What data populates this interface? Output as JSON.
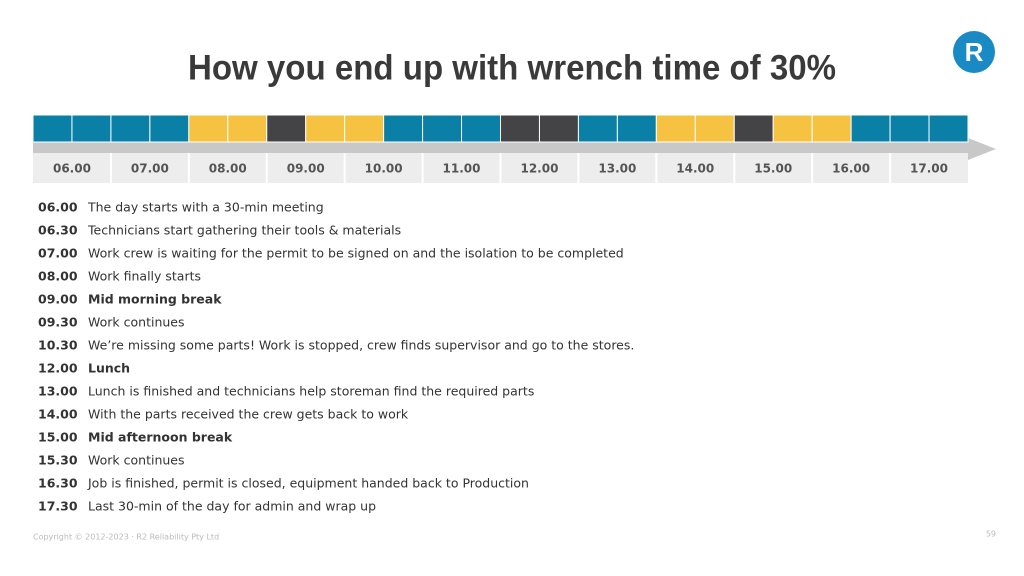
{
  "title": "How you end up with wrench time of 30%",
  "logo": "R",
  "timeline": {
    "blocks": [
      "#0a80a6",
      "#0a80a6",
      "#0a80a6",
      "#0a80a6",
      "#f5c242",
      "#f5c242",
      "#444446",
      "#f5c242",
      "#f5c242",
      "#0a80a6",
      "#0a80a6",
      "#0a80a6",
      "#444446",
      "#444446",
      "#0a80a6",
      "#0a80a6",
      "#f5c242",
      "#f5c242",
      "#444446",
      "#f5c242",
      "#f5c242",
      "#0a80a6",
      "#0a80a6",
      "#0a80a6"
    ],
    "hours": [
      "06.00",
      "07.00",
      "08.00",
      "09.00",
      "10.00",
      "11.00",
      "12.00",
      "13.00",
      "14.00",
      "15.00",
      "16.00",
      "17.00"
    ]
  },
  "events": [
    {
      "time": "06.00",
      "text": "The day starts with a 30-min meeting",
      "bold": false
    },
    {
      "time": "06.30",
      "text": "Technicians start gathering their tools & materials",
      "bold": false
    },
    {
      "time": "07.00",
      "text": "Work crew is waiting for the permit to be signed on and the isolation to be completed",
      "bold": false
    },
    {
      "time": "08.00",
      "text": "Work finally starts",
      "bold": false
    },
    {
      "time": "09.00",
      "text": "Mid morning break",
      "bold": true
    },
    {
      "time": "09.30",
      "text": "Work continues",
      "bold": false
    },
    {
      "time": "10.30",
      "text": "We’re missing some parts! Work is stopped, crew finds supervisor and go to the stores.",
      "bold": false
    },
    {
      "time": "12.00",
      "text": "Lunch",
      "bold": true
    },
    {
      "time": "13.00",
      "text": "Lunch is finished and technicians help storeman find the required parts",
      "bold": false
    },
    {
      "time": "14.00",
      "text": "With the parts received the crew gets back to work",
      "bold": false
    },
    {
      "time": "15.00",
      "text": "Mid afternoon break",
      "bold": true
    },
    {
      "time": "15.30",
      "text": "Work continues",
      "bold": false
    },
    {
      "time": "16.30",
      "text": "Job is finished, permit is closed, equipment handed back to Production",
      "bold": false
    },
    {
      "time": "17.30",
      "text": "Last 30-min of the day for admin and wrap up",
      "bold": false
    }
  ],
  "footer": {
    "copyright": "Copyright © 2012-2023 · R2 Reliability Pty Ltd",
    "page": "59"
  }
}
